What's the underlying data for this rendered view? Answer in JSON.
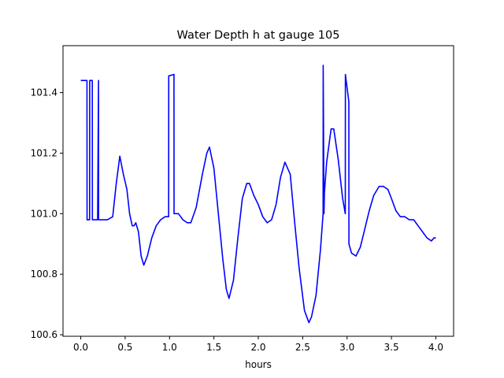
{
  "chart_data": {
    "type": "line",
    "title": "Water Depth h at gauge 105",
    "xlabel": "hours",
    "ylabel": "",
    "xlim": [
      -0.2,
      4.2
    ],
    "ylim": [
      100.595,
      101.555
    ],
    "xticks": [
      0.0,
      0.5,
      1.0,
      1.5,
      2.0,
      2.5,
      3.0,
      3.5,
      4.0
    ],
    "xtick_labels": [
      "0.0",
      "0.5",
      "1.0",
      "1.5",
      "2.0",
      "2.5",
      "3.0",
      "3.5",
      "4.0"
    ],
    "yticks": [
      100.6,
      100.8,
      101.0,
      101.2,
      101.4
    ],
    "ytick_labels": [
      "100.6",
      "100.8",
      "101.0",
      "101.2",
      "101.4"
    ],
    "grid": false,
    "series": [
      {
        "color": "#0000ff",
        "x": [
          0.0,
          0.07,
          0.071,
          0.1,
          0.101,
          0.13,
          0.131,
          0.19,
          0.2,
          0.201,
          0.22,
          0.3,
          0.36,
          0.4,
          0.44,
          0.48,
          0.52,
          0.55,
          0.58,
          0.6,
          0.62,
          0.65,
          0.68,
          0.71,
          0.75,
          0.8,
          0.85,
          0.9,
          0.95,
          0.99,
          0.991,
          1.05,
          1.051,
          1.1,
          1.15,
          1.2,
          1.24,
          1.3,
          1.37,
          1.42,
          1.45,
          1.5,
          1.55,
          1.6,
          1.64,
          1.67,
          1.72,
          1.77,
          1.82,
          1.87,
          1.9,
          1.95,
          2.0,
          2.05,
          2.1,
          2.15,
          2.2,
          2.25,
          2.3,
          2.36,
          2.41,
          2.46,
          2.52,
          2.57,
          2.6,
          2.65,
          2.7,
          2.73,
          2.731,
          2.74,
          2.745,
          2.77,
          2.82,
          2.85,
          2.9,
          2.95,
          2.98,
          2.981,
          3.02,
          3.021,
          3.05,
          3.1,
          3.15,
          3.2,
          3.25,
          3.3,
          3.36,
          3.41,
          3.46,
          3.5,
          3.55,
          3.6,
          3.65,
          3.7,
          3.75,
          3.8,
          3.85,
          3.9,
          3.95,
          3.98,
          4.0
        ],
        "y": [
          101.44,
          101.44,
          100.98,
          100.98,
          101.44,
          101.44,
          100.98,
          100.98,
          101.44,
          100.98,
          100.98,
          100.98,
          100.99,
          101.1,
          101.19,
          101.13,
          101.08,
          101.0,
          100.96,
          100.96,
          100.97,
          100.94,
          100.86,
          100.83,
          100.86,
          100.92,
          100.96,
          100.98,
          100.99,
          100.99,
          101.455,
          101.46,
          101.0,
          101.0,
          100.98,
          100.97,
          100.97,
          101.02,
          101.13,
          101.2,
          101.22,
          101.15,
          101.0,
          100.85,
          100.75,
          100.72,
          100.78,
          100.92,
          101.05,
          101.1,
          101.1,
          101.06,
          101.03,
          100.99,
          100.97,
          100.98,
          101.03,
          101.12,
          101.17,
          101.13,
          100.97,
          100.82,
          100.68,
          100.64,
          100.66,
          100.73,
          100.88,
          101.0,
          101.49,
          101.0,
          101.07,
          101.17,
          101.28,
          101.28,
          101.18,
          101.05,
          101.0,
          101.46,
          101.37,
          100.9,
          100.87,
          100.86,
          100.89,
          100.95,
          101.01,
          101.06,
          101.09,
          101.09,
          101.08,
          101.05,
          101.01,
          100.99,
          100.99,
          100.98,
          100.98,
          100.96,
          100.94,
          100.92,
          100.91,
          100.92,
          100.92
        ]
      }
    ]
  }
}
